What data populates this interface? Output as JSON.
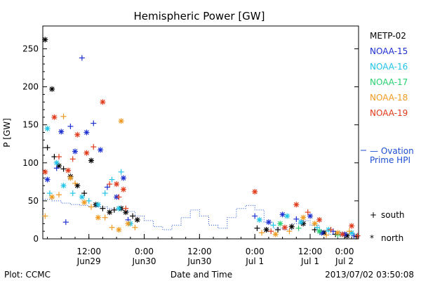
{
  "chart_data": {
    "type": "scatter",
    "title": "Hemispheric Power [GW]",
    "xlabel": "Date and Time",
    "ylabel": "P [GW]",
    "ylim": [
      0,
      280
    ],
    "xlim": [
      2.0,
      70.5
    ],
    "y_ticks": [
      0,
      50,
      100,
      150,
      200,
      250
    ],
    "x_ticks": [
      {
        "x": 12,
        "top": "12:00",
        "bottom": "Jun29"
      },
      {
        "x": 24,
        "top": "0:00",
        "bottom": "Jun30"
      },
      {
        "x": 36,
        "top": "12:00",
        "bottom": "Jun30"
      },
      {
        "x": 48,
        "top": "0:00",
        "bottom": "Jul 1"
      },
      {
        "x": 60,
        "top": "12:00",
        "bottom": "Jul 1"
      },
      {
        "x": 72,
        "top": "0:00",
        "bottom": "Jul 2"
      }
    ],
    "legend_position": "right",
    "footer_left": "Plot: CCMC",
    "footer_right": "2013/07/02 03:50:08",
    "marker_legend": [
      {
        "symbol": "+",
        "label": "south"
      },
      {
        "symbol": "*",
        "label": "north"
      }
    ],
    "ovation": {
      "name_line1": "— Ovation",
      "name_line2": "Prime HPI",
      "color": "#1c4fd6",
      "x": [
        2,
        4,
        6,
        8,
        10,
        12,
        14,
        16,
        18,
        20,
        22,
        24,
        26,
        28,
        30,
        32,
        34,
        36,
        38,
        40,
        42,
        44,
        46,
        48,
        50,
        52,
        54,
        56,
        58,
        60,
        62,
        64,
        66,
        68,
        70
      ],
      "y": [
        52,
        50,
        47,
        45,
        44,
        42,
        42,
        40,
        38,
        36,
        30,
        24,
        16,
        12,
        18,
        28,
        38,
        30,
        18,
        14,
        28,
        40,
        44,
        38,
        22,
        14,
        12,
        20,
        24,
        18,
        10,
        6,
        8,
        6,
        5
      ]
    },
    "series": [
      {
        "name": "METP-02",
        "color": "#000000",
        "points": [
          {
            "x": 2.5,
            "y": 262,
            "m": "*"
          },
          {
            "x": 4,
            "y": 197,
            "m": "*"
          },
          {
            "x": 3,
            "y": 120,
            "m": "+"
          },
          {
            "x": 4.5,
            "y": 108,
            "m": "+"
          },
          {
            "x": 5.5,
            "y": 96,
            "m": "*"
          },
          {
            "x": 6.5,
            "y": 92,
            "m": "+"
          },
          {
            "x": 8,
            "y": 82,
            "m": "*"
          },
          {
            "x": 9.5,
            "y": 70,
            "m": "*"
          },
          {
            "x": 11,
            "y": 60,
            "m": "+"
          },
          {
            "x": 12.5,
            "y": 103,
            "m": "*"
          },
          {
            "x": 13.5,
            "y": 45,
            "m": "*"
          },
          {
            "x": 15,
            "y": 40,
            "m": "+"
          },
          {
            "x": 16.5,
            "y": 35,
            "m": "*"
          },
          {
            "x": 17.5,
            "y": 38,
            "m": "+"
          },
          {
            "x": 19,
            "y": 40,
            "m": "*"
          },
          {
            "x": 20,
            "y": 35,
            "m": "*"
          },
          {
            "x": 21.5,
            "y": 30,
            "m": "+"
          },
          {
            "x": 22.5,
            "y": 25,
            "m": "*"
          },
          {
            "x": 48.5,
            "y": 14,
            "m": "+"
          },
          {
            "x": 50.5,
            "y": 12,
            "m": "*"
          },
          {
            "x": 53,
            "y": 12,
            "m": "+"
          },
          {
            "x": 56,
            "y": 16,
            "m": "*"
          },
          {
            "x": 58.5,
            "y": 20,
            "m": "*"
          },
          {
            "x": 61,
            "y": 12,
            "m": "+"
          },
          {
            "x": 63,
            "y": 8,
            "m": "*"
          },
          {
            "x": 65.5,
            "y": 6,
            "m": "+"
          },
          {
            "x": 68,
            "y": 4,
            "m": "*"
          },
          {
            "x": 70,
            "y": 3,
            "m": "+"
          }
        ]
      },
      {
        "name": "NOAA-15",
        "color": "#1c2fd0",
        "points": [
          {
            "x": 3,
            "y": 78,
            "m": "*"
          },
          {
            "x": 5,
            "y": 93,
            "m": "+"
          },
          {
            "x": 6,
            "y": 141,
            "m": "*"
          },
          {
            "x": 8,
            "y": 148,
            "m": "+"
          },
          {
            "x": 9,
            "y": 115,
            "m": "*"
          },
          {
            "x": 10.5,
            "y": 238,
            "m": "+"
          },
          {
            "x": 11.5,
            "y": 140,
            "m": "*"
          },
          {
            "x": 13,
            "y": 152,
            "m": "+"
          },
          {
            "x": 14.5,
            "y": 117,
            "m": "*"
          },
          {
            "x": 7,
            "y": 22,
            "m": "+"
          },
          {
            "x": 16,
            "y": 68,
            "m": "+"
          },
          {
            "x": 18,
            "y": 55,
            "m": "*"
          },
          {
            "x": 19.5,
            "y": 80,
            "m": "*"
          },
          {
            "x": 20.5,
            "y": 25,
            "m": "+"
          },
          {
            "x": 48,
            "y": 30,
            "m": "+"
          },
          {
            "x": 51,
            "y": 22,
            "m": "*"
          },
          {
            "x": 54,
            "y": 32,
            "m": "*"
          },
          {
            "x": 57,
            "y": 26,
            "m": "+"
          },
          {
            "x": 60,
            "y": 30,
            "m": "*"
          },
          {
            "x": 62.5,
            "y": 8,
            "m": "*"
          },
          {
            "x": 65,
            "y": 10,
            "m": "+"
          },
          {
            "x": 67.5,
            "y": 6,
            "m": "*"
          },
          {
            "x": 69.5,
            "y": 4,
            "m": "+"
          }
        ]
      },
      {
        "name": "NOAA-16",
        "color": "#20c4e8",
        "points": [
          {
            "x": 3,
            "y": 145,
            "m": "*"
          },
          {
            "x": 3.5,
            "y": 60,
            "m": "+"
          },
          {
            "x": 5,
            "y": 100,
            "m": "*"
          },
          {
            "x": 6.5,
            "y": 70,
            "m": "*"
          },
          {
            "x": 8.5,
            "y": 60,
            "m": "+"
          },
          {
            "x": 10.5,
            "y": 55,
            "m": "*"
          },
          {
            "x": 12,
            "y": 50,
            "m": "+"
          },
          {
            "x": 14,
            "y": 45,
            "m": "*"
          },
          {
            "x": 15.5,
            "y": 60,
            "m": "+"
          },
          {
            "x": 17,
            "y": 78,
            "m": "+"
          },
          {
            "x": 18.5,
            "y": 40,
            "m": "*"
          },
          {
            "x": 19,
            "y": 88,
            "m": "+"
          },
          {
            "x": 21,
            "y": 20,
            "m": "*"
          },
          {
            "x": 49,
            "y": 25,
            "m": "*"
          },
          {
            "x": 52,
            "y": 18,
            "m": "+"
          },
          {
            "x": 55,
            "y": 30,
            "m": "*"
          },
          {
            "x": 58,
            "y": 22,
            "m": "*"
          },
          {
            "x": 61.5,
            "y": 15,
            "m": "+"
          },
          {
            "x": 64,
            "y": 12,
            "m": "*"
          },
          {
            "x": 66.5,
            "y": 6,
            "m": "+"
          },
          {
            "x": 69,
            "y": 8,
            "m": "*"
          }
        ]
      },
      {
        "name": "NOAA-17",
        "color": "#28d070",
        "points": [
          {
            "x": 53.5,
            "y": 20,
            "m": "*"
          },
          {
            "x": 57.5,
            "y": 14,
            "m": "+"
          },
          {
            "x": 62,
            "y": 10,
            "m": "*"
          },
          {
            "x": 66,
            "y": 5,
            "m": "+"
          }
        ]
      },
      {
        "name": "NOAA-18",
        "color": "#f09a20",
        "points": [
          {
            "x": 2.5,
            "y": 30,
            "m": "+"
          },
          {
            "x": 4,
            "y": 55,
            "m": "*"
          },
          {
            "x": 5.5,
            "y": 58,
            "m": "+"
          },
          {
            "x": 6.5,
            "y": 161,
            "m": "+"
          },
          {
            "x": 8,
            "y": 80,
            "m": "*"
          },
          {
            "x": 9,
            "y": 73,
            "m": "+"
          },
          {
            "x": 11,
            "y": 48,
            "m": "*"
          },
          {
            "x": 12.5,
            "y": 42,
            "m": "+"
          },
          {
            "x": 14,
            "y": 28,
            "m": "*"
          },
          {
            "x": 15.5,
            "y": 28,
            "m": "+"
          },
          {
            "x": 17,
            "y": 15,
            "m": "+"
          },
          {
            "x": 18.5,
            "y": 12,
            "m": "*"
          },
          {
            "x": 19,
            "y": 155,
            "m": "*"
          },
          {
            "x": 20.5,
            "y": 20,
            "m": "*"
          },
          {
            "x": 22,
            "y": 15,
            "m": "+"
          },
          {
            "x": 49.5,
            "y": 8,
            "m": "+"
          },
          {
            "x": 52.5,
            "y": 6,
            "m": "*"
          },
          {
            "x": 55.5,
            "y": 10,
            "m": "+"
          },
          {
            "x": 58.5,
            "y": 28,
            "m": "*"
          },
          {
            "x": 61,
            "y": 20,
            "m": "*"
          },
          {
            "x": 63.5,
            "y": 5,
            "m": "+"
          },
          {
            "x": 66,
            "y": 8,
            "m": "*"
          },
          {
            "x": 68.5,
            "y": 10,
            "m": "+"
          }
        ]
      },
      {
        "name": "NOAA-19",
        "color": "#e03a1a",
        "points": [
          {
            "x": 2.5,
            "y": 88,
            "m": "*"
          },
          {
            "x": 4.5,
            "y": 160,
            "m": "*"
          },
          {
            "x": 5.5,
            "y": 108,
            "m": "+"
          },
          {
            "x": 7.5,
            "y": 90,
            "m": "*"
          },
          {
            "x": 8.5,
            "y": 105,
            "m": "+"
          },
          {
            "x": 9.5,
            "y": 137,
            "m": "*"
          },
          {
            "x": 11.5,
            "y": 113,
            "m": "*"
          },
          {
            "x": 13,
            "y": 121,
            "m": "+"
          },
          {
            "x": 15,
            "y": 180,
            "m": "*"
          },
          {
            "x": 16.5,
            "y": 72,
            "m": "+"
          },
          {
            "x": 18,
            "y": 72,
            "m": "*"
          },
          {
            "x": 18.5,
            "y": 55,
            "m": "+"
          },
          {
            "x": 19.5,
            "y": 65,
            "m": "*"
          },
          {
            "x": 20,
            "y": 40,
            "m": "+"
          },
          {
            "x": 48,
            "y": 62,
            "m": "*"
          },
          {
            "x": 51.5,
            "y": 10,
            "m": "+"
          },
          {
            "x": 54.5,
            "y": 15,
            "m": "*"
          },
          {
            "x": 57,
            "y": 45,
            "m": "*"
          },
          {
            "x": 59.5,
            "y": 35,
            "m": "+"
          },
          {
            "x": 62,
            "y": 25,
            "m": "*"
          },
          {
            "x": 64.5,
            "y": 12,
            "m": "+"
          },
          {
            "x": 67,
            "y": 6,
            "m": "*"
          },
          {
            "x": 69,
            "y": 17,
            "m": "*"
          },
          {
            "x": 70.3,
            "y": 4,
            "m": "+"
          }
        ]
      }
    ]
  }
}
